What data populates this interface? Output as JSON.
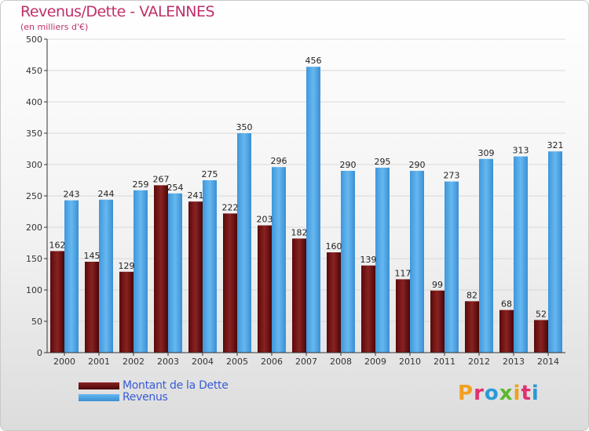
{
  "title": "Revenus/Dette - VALENNES",
  "subtitle": "(en milliers d'€)",
  "legend": {
    "dette": "Montant de la Dette",
    "revenus": "Revenus"
  },
  "logo": {
    "text": "Proxiti",
    "letters": [
      "P",
      "r",
      "o",
      "x",
      "i",
      "t",
      "i"
    ]
  },
  "colors": {
    "dette": "#6b1010",
    "revenus": "#4da6e6",
    "title": "#c0306a",
    "legend_text": "#3a5bd6"
  },
  "chart_data": {
    "type": "bar",
    "title": "Revenus/Dette - VALENNES",
    "ylabel": "(en milliers d'€)",
    "xlabel": "",
    "ylim": [
      0,
      500
    ],
    "yticks": [
      0,
      50,
      100,
      150,
      200,
      250,
      300,
      350,
      400,
      450,
      500
    ],
    "grid": true,
    "legend_position": "bottom-left",
    "categories": [
      "2000",
      "2001",
      "2002",
      "2003",
      "2004",
      "2005",
      "2006",
      "2007",
      "2008",
      "2009",
      "2010",
      "2011",
      "2012",
      "2013",
      "2014"
    ],
    "series": [
      {
        "name": "Montant de la Dette",
        "values": [
          162,
          145,
          129,
          267,
          241,
          222,
          203,
          182,
          160,
          139,
          117,
          99,
          82,
          68,
          52
        ]
      },
      {
        "name": "Revenus",
        "values": [
          243,
          244,
          259,
          254,
          275,
          350,
          296,
          456,
          290,
          295,
          290,
          273,
          309,
          313,
          321
        ]
      }
    ]
  }
}
